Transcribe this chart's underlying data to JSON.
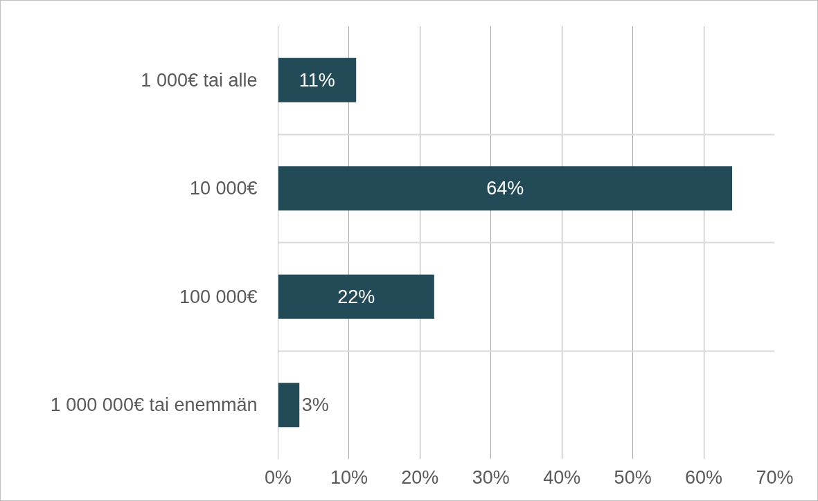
{
  "chart_data": {
    "type": "bar",
    "orientation": "horizontal",
    "categories": [
      "1 000€ tai alle",
      "10 000€",
      "100 000€",
      "1 000 000€ tai enemmän"
    ],
    "values": [
      11,
      64,
      22,
      3
    ],
    "color": "#234b57",
    "value_labels": [
      "11%",
      "64%",
      "22%",
      "3%"
    ],
    "xlim": [
      0,
      70
    ],
    "xticks": [
      {
        "value": 0,
        "label": "0%"
      },
      {
        "value": 10,
        "label": "10%"
      },
      {
        "value": 20,
        "label": "20%"
      },
      {
        "value": 30,
        "label": "30%"
      },
      {
        "value": 40,
        "label": "40%"
      },
      {
        "value": 50,
        "label": "50%"
      },
      {
        "value": 60,
        "label": "60%"
      },
      {
        "value": 70,
        "label": "70%"
      }
    ],
    "grid": true
  }
}
